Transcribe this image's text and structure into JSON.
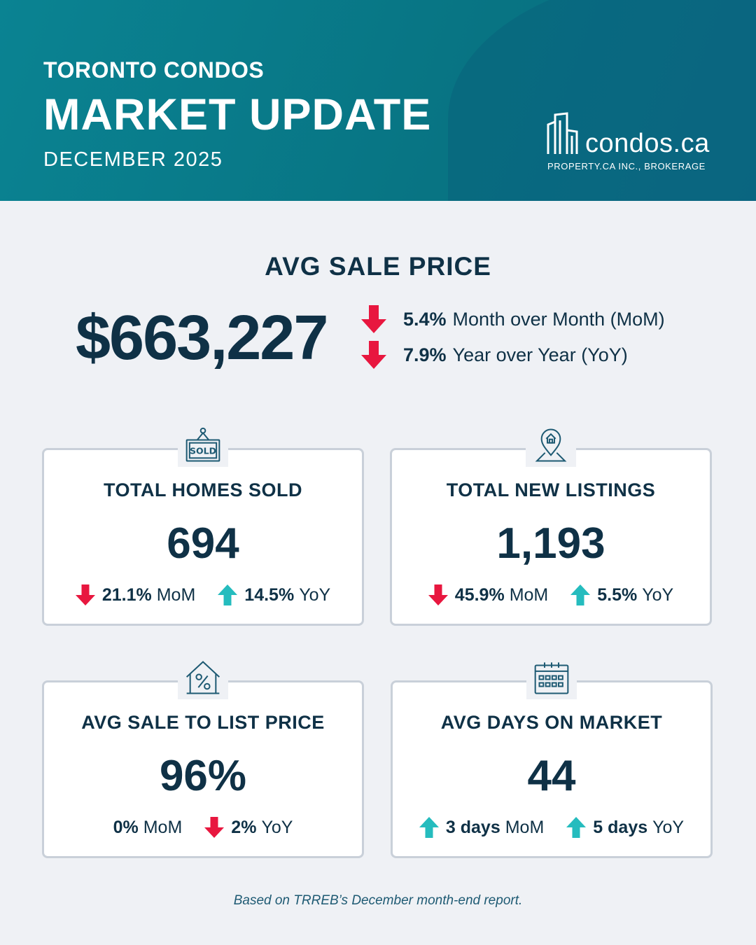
{
  "header": {
    "eyebrow": "TORONTO CONDOS",
    "title": "MARKET UPDATE",
    "subtitle": "DECEMBER 2025"
  },
  "brand": {
    "name": "condos.ca",
    "tagline": "PROPERTY.CA INC., BROKERAGE",
    "icon": "buildings-icon"
  },
  "hero": {
    "label": "AVG SALE PRICE",
    "value": "$663,227",
    "mom": {
      "value": "5.4%",
      "label": "Month over Month (MoM)",
      "direction": "down"
    },
    "yoy": {
      "value": "7.9%",
      "label": "Year over Year (YoY)",
      "direction": "down"
    }
  },
  "cards": {
    "sold": {
      "icon": "sold-sign-icon",
      "title": "TOTAL HOMES SOLD",
      "value": "694",
      "mom": {
        "value": "21.1%",
        "label": "MoM",
        "direction": "down"
      },
      "yoy": {
        "value": "14.5%",
        "label": "YoY",
        "direction": "up"
      }
    },
    "listings": {
      "icon": "location-pin-home-icon",
      "title": "TOTAL NEW LISTINGS",
      "value": "1,193",
      "mom": {
        "value": "45.9%",
        "label": "MoM",
        "direction": "down"
      },
      "yoy": {
        "value": "5.5%",
        "label": "YoY",
        "direction": "up"
      }
    },
    "ratio": {
      "icon": "house-percent-icon",
      "title": "AVG SALE TO LIST PRICE",
      "value": "96%",
      "mom": {
        "value": "0%",
        "label": "MoM",
        "direction": "none"
      },
      "yoy": {
        "value": "2%",
        "label": "YoY",
        "direction": "down"
      }
    },
    "dom": {
      "icon": "calendar-icon",
      "title": "AVG DAYS ON MARKET",
      "value": "44",
      "mom": {
        "value": "3 days",
        "label": "MoM",
        "direction": "up"
      },
      "yoy": {
        "value": "5 days",
        "label": "YoY",
        "direction": "up"
      }
    }
  },
  "footnote": "Based on TRREB’s December month-end report.",
  "colors": {
    "header": "#087483",
    "navy": "#0f3146",
    "down": "#e8173f",
    "up": "#25bcbe",
    "background": "#eff1f5"
  }
}
